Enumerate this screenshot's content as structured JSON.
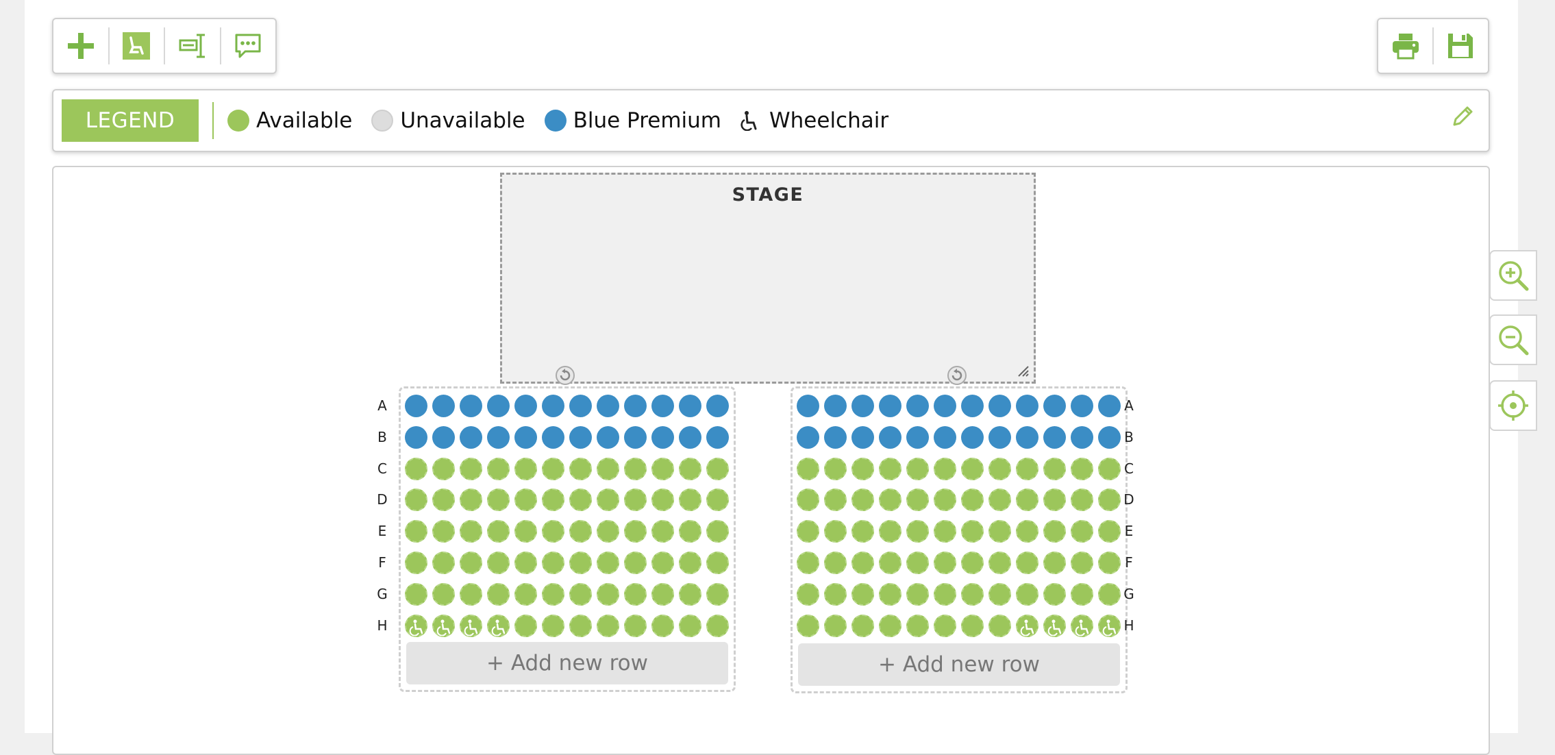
{
  "toolbar": {
    "left_tools": [
      {
        "name": "add-icon",
        "title": "Add"
      },
      {
        "name": "seat-icon",
        "title": "Seats"
      },
      {
        "name": "table-icon",
        "title": "Table"
      },
      {
        "name": "comment-icon",
        "title": "Comment"
      }
    ],
    "right_tools": [
      {
        "name": "print-icon",
        "title": "Print"
      },
      {
        "name": "save-icon",
        "title": "Save"
      }
    ]
  },
  "legend": {
    "badge": "LEGEND",
    "items": [
      {
        "label": "Available",
        "color": "#9cc65b"
      },
      {
        "label": "Unavailable",
        "color": "#dddddd"
      },
      {
        "label": "Blue Premium",
        "color": "#3b8dc5"
      },
      {
        "label": "Wheelchair",
        "icon": "wheelchair-icon"
      }
    ]
  },
  "stage": {
    "label": "STAGE"
  },
  "colors": {
    "available": "#9cc65b",
    "unavailable": "#dddddd",
    "premium": "#3b8dc5",
    "accent": "#9cc65b"
  },
  "sections": [
    {
      "id": "left",
      "rows": [
        {
          "label": "A",
          "category": "premium",
          "seats": 12,
          "wheelchair": []
        },
        {
          "label": "B",
          "category": "premium",
          "seats": 12,
          "wheelchair": []
        },
        {
          "label": "C",
          "category": "available",
          "seats": 12,
          "wheelchair": []
        },
        {
          "label": "D",
          "category": "available",
          "seats": 12,
          "wheelchair": []
        },
        {
          "label": "E",
          "category": "available",
          "seats": 12,
          "wheelchair": []
        },
        {
          "label": "F",
          "category": "available",
          "seats": 12,
          "wheelchair": []
        },
        {
          "label": "G",
          "category": "available",
          "seats": 12,
          "wheelchair": []
        },
        {
          "label": "H",
          "category": "available",
          "seats": 12,
          "wheelchair": [
            1,
            2,
            3,
            4
          ]
        }
      ],
      "add_row_label": "+ Add new row"
    },
    {
      "id": "right",
      "rows": [
        {
          "label": "A",
          "category": "premium",
          "seats": 12,
          "wheelchair": []
        },
        {
          "label": "B",
          "category": "premium",
          "seats": 12,
          "wheelchair": []
        },
        {
          "label": "C",
          "category": "available",
          "seats": 12,
          "wheelchair": []
        },
        {
          "label": "D",
          "category": "available",
          "seats": 12,
          "wheelchair": []
        },
        {
          "label": "E",
          "category": "available",
          "seats": 12,
          "wheelchair": []
        },
        {
          "label": "F",
          "category": "available",
          "seats": 12,
          "wheelchair": []
        },
        {
          "label": "G",
          "category": "available",
          "seats": 12,
          "wheelchair": []
        },
        {
          "label": "H",
          "category": "available",
          "seats": 12,
          "wheelchair": [
            9,
            10,
            11,
            12
          ]
        }
      ],
      "add_row_label": "+ Add new row"
    }
  ],
  "zoom_controls": [
    {
      "name": "zoom-in-icon"
    },
    {
      "name": "zoom-out-icon"
    },
    {
      "name": "recenter-icon"
    }
  ]
}
